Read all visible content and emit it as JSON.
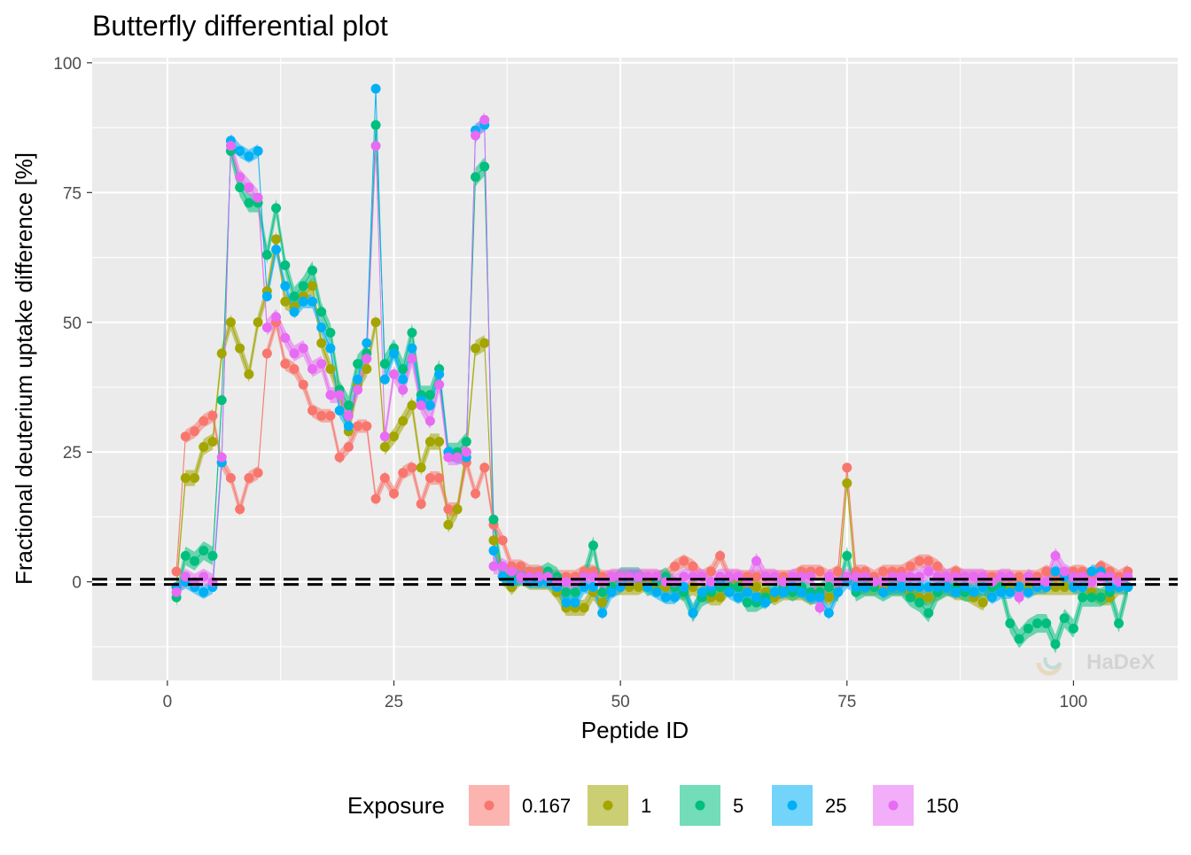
{
  "chart_data": {
    "type": "line",
    "title": "Butterfly differential plot",
    "xlabel": "Peptide ID",
    "ylabel": "Fractional deuterium uptake difference [%]",
    "xlim": [
      -8.3,
      111.5
    ],
    "ylim": [
      -19,
      101
    ],
    "x_ticks": [
      0,
      25,
      50,
      75,
      100
    ],
    "y_ticks": [
      0,
      25,
      50,
      75,
      100
    ],
    "grid": true,
    "reference_lines": [
      -0.5,
      0.5
    ],
    "legend": {
      "title": "Exposure",
      "position": "bottom"
    },
    "watermark": "HaDeX",
    "series": [
      {
        "name": "0.167",
        "color": "#F8766D",
        "x": [
          1,
          2,
          3,
          4,
          5,
          6,
          7,
          8,
          9,
          10,
          11,
          12,
          13,
          14,
          15,
          16,
          17,
          18,
          19,
          20,
          21,
          22,
          23,
          24,
          25,
          26,
          27,
          28,
          29,
          30,
          31,
          32,
          33,
          34,
          35,
          36,
          37,
          38,
          39,
          40,
          41,
          42,
          43,
          44,
          45,
          46,
          47,
          48,
          49,
          50,
          51,
          52,
          53,
          54,
          55,
          56,
          57,
          58,
          59,
          60,
          61,
          62,
          63,
          64,
          65,
          66,
          67,
          68,
          69,
          70,
          71,
          72,
          73,
          74,
          75,
          76,
          77,
          78,
          79,
          80,
          81,
          82,
          83,
          84,
          85,
          86,
          87,
          88,
          89,
          90,
          91,
          92,
          93,
          94,
          95,
          96,
          97,
          98,
          99,
          100,
          101,
          102,
          103,
          104,
          105,
          106
        ],
        "y": [
          2,
          28,
          29,
          31,
          32,
          23,
          20,
          14,
          20,
          21,
          44,
          50,
          42,
          41,
          38,
          33,
          32,
          32,
          24,
          26,
          30,
          30,
          16,
          20,
          17,
          21,
          22,
          15,
          20,
          20,
          14,
          14,
          23,
          17,
          22,
          11,
          8,
          3,
          3,
          2,
          2,
          1,
          1,
          1,
          1,
          2,
          2,
          1,
          1,
          1,
          1,
          1,
          1,
          1,
          1,
          3,
          4,
          3,
          1,
          2,
          5,
          1,
          1,
          1,
          1,
          1,
          1,
          1,
          1,
          2,
          2,
          2,
          1,
          2,
          22,
          2,
          2,
          1,
          2,
          2,
          2,
          3,
          4,
          4,
          3,
          1,
          2,
          1,
          1,
          1,
          1,
          1,
          1,
          1,
          1,
          1,
          2,
          1,
          1,
          2,
          2,
          1,
          3,
          2,
          1,
          2
        ]
      },
      {
        "name": "1",
        "color": "#A3A500",
        "x": [
          1,
          2,
          3,
          4,
          5,
          6,
          7,
          8,
          9,
          10,
          11,
          12,
          13,
          14,
          15,
          16,
          17,
          18,
          19,
          20,
          21,
          22,
          23,
          24,
          25,
          26,
          27,
          28,
          29,
          30,
          31,
          32,
          33,
          34,
          35,
          36,
          37,
          38,
          39,
          40,
          41,
          42,
          43,
          44,
          45,
          46,
          47,
          48,
          49,
          50,
          51,
          52,
          53,
          54,
          55,
          56,
          57,
          58,
          59,
          60,
          61,
          62,
          63,
          64,
          65,
          66,
          67,
          68,
          69,
          70,
          71,
          72,
          73,
          74,
          75,
          76,
          77,
          78,
          79,
          80,
          81,
          82,
          83,
          84,
          85,
          86,
          87,
          88,
          89,
          90,
          91,
          92,
          93,
          94,
          95,
          96,
          97,
          98,
          99,
          100,
          101,
          102,
          103,
          104,
          105,
          106
        ],
        "y": [
          -1,
          20,
          20,
          26,
          27,
          44,
          50,
          45,
          40,
          50,
          56,
          66,
          54,
          53,
          55,
          57,
          46,
          41,
          36,
          29,
          38,
          41,
          50,
          26,
          28,
          31,
          34,
          22,
          27,
          27,
          11,
          14,
          25,
          45,
          46,
          8,
          1,
          -1,
          1,
          0,
          0,
          0,
          -2,
          -5,
          -5,
          -5,
          -2,
          -4,
          -1,
          -1,
          -1,
          -1,
          0,
          -1,
          -1,
          -1,
          -2,
          -1,
          -2,
          -3,
          -3,
          -1,
          0,
          -1,
          -1,
          -2,
          -3,
          -2,
          -2,
          -2,
          -3,
          -2,
          -3,
          -2,
          19,
          -1,
          -1,
          -1,
          -1,
          -1,
          -1,
          -2,
          -3,
          -3,
          -2,
          -1,
          -2,
          -2,
          -3,
          -4,
          -1,
          -1,
          -1,
          -1,
          -1,
          -1,
          -1,
          -1,
          -1,
          -1,
          -1,
          -2,
          -3,
          -3,
          -1,
          -1
        ]
      },
      {
        "name": "5",
        "color": "#00BF7D",
        "x": [
          1,
          2,
          3,
          4,
          5,
          6,
          7,
          8,
          9,
          10,
          11,
          12,
          13,
          14,
          15,
          16,
          17,
          18,
          19,
          20,
          21,
          22,
          23,
          24,
          25,
          26,
          27,
          28,
          29,
          30,
          31,
          32,
          33,
          34,
          35,
          36,
          37,
          38,
          39,
          40,
          41,
          42,
          43,
          44,
          45,
          46,
          47,
          48,
          49,
          50,
          51,
          52,
          53,
          54,
          55,
          56,
          57,
          58,
          59,
          60,
          61,
          62,
          63,
          64,
          65,
          66,
          67,
          68,
          69,
          70,
          71,
          72,
          73,
          74,
          75,
          76,
          77,
          78,
          79,
          80,
          81,
          82,
          83,
          84,
          85,
          86,
          87,
          88,
          89,
          90,
          91,
          92,
          93,
          94,
          95,
          96,
          97,
          98,
          99,
          100,
          101,
          102,
          103,
          104,
          105,
          106
        ],
        "y": [
          -3,
          5,
          4,
          6,
          5,
          35,
          83,
          76,
          73,
          73,
          63,
          72,
          61,
          55,
          57,
          60,
          52,
          48,
          37,
          34,
          42,
          44,
          88,
          42,
          45,
          41,
          48,
          36,
          36,
          41,
          25,
          25,
          27,
          78,
          80,
          12,
          1,
          1,
          1,
          1,
          1,
          2,
          1,
          -2,
          -2,
          1,
          7,
          -2,
          -1,
          1,
          1,
          1,
          -1,
          0,
          1,
          -1,
          -2,
          -6,
          -3,
          -2,
          -1,
          -1,
          -1,
          -4,
          -4,
          -3,
          -2,
          -1,
          -2,
          -1,
          -2,
          -2,
          -1,
          -2,
          5,
          -2,
          -1,
          -1,
          -2,
          -1,
          -1,
          -3,
          -4,
          -6,
          -2,
          -1,
          -1,
          -2,
          -2,
          -1,
          -1,
          -1,
          -8,
          -11,
          -9,
          -8,
          -8,
          -12,
          -7,
          -9,
          -3,
          -3,
          -3,
          -2,
          -8,
          -1
        ]
      },
      {
        "name": "25",
        "color": "#00B0F6",
        "x": [
          1,
          2,
          3,
          4,
          5,
          6,
          7,
          8,
          9,
          10,
          11,
          12,
          13,
          14,
          15,
          16,
          17,
          18,
          19,
          20,
          21,
          22,
          23,
          24,
          25,
          26,
          27,
          28,
          29,
          30,
          31,
          32,
          33,
          34,
          35,
          36,
          37,
          38,
          39,
          40,
          41,
          42,
          43,
          44,
          45,
          46,
          47,
          48,
          49,
          50,
          51,
          52,
          53,
          54,
          55,
          56,
          57,
          58,
          59,
          60,
          61,
          62,
          63,
          64,
          65,
          66,
          67,
          68,
          69,
          70,
          71,
          72,
          73,
          74,
          75,
          76,
          77,
          78,
          79,
          80,
          81,
          82,
          83,
          84,
          85,
          86,
          87,
          88,
          89,
          90,
          91,
          92,
          93,
          94,
          95,
          96,
          97,
          98,
          99,
          100,
          101,
          102,
          103,
          104,
          105,
          106
        ],
        "y": [
          -1,
          0,
          -1,
          -2,
          -1,
          23,
          85,
          83,
          82,
          83,
          55,
          64,
          57,
          52,
          54,
          54,
          49,
          45,
          33,
          30,
          39,
          46,
          95,
          39,
          44,
          39,
          45,
          35,
          34,
          40,
          25,
          24,
          24,
          87,
          88,
          6,
          1,
          0,
          1,
          0,
          0,
          0,
          -1,
          -4,
          -4,
          -1,
          -1,
          -6,
          -2,
          -1,
          1,
          1,
          -1,
          -2,
          -3,
          -3,
          -1,
          -6,
          -2,
          -1,
          0,
          -2,
          -3,
          -2,
          -3,
          -4,
          -2,
          -2,
          -1,
          -2,
          -3,
          -3,
          -6,
          -2,
          0,
          -1,
          -1,
          0,
          -2,
          -1,
          -1,
          -1,
          -1,
          -1,
          -1,
          -1,
          -2,
          -1,
          -2,
          -1,
          -3,
          -2,
          -2,
          -1,
          -2,
          -1,
          -1,
          2,
          1,
          -1,
          -1,
          2,
          2,
          -1,
          -1,
          -1
        ]
      },
      {
        "name": "150",
        "color": "#E76BF3",
        "x": [
          1,
          2,
          3,
          4,
          5,
          6,
          7,
          8,
          9,
          10,
          11,
          12,
          13,
          14,
          15,
          16,
          17,
          18,
          19,
          20,
          21,
          22,
          23,
          24,
          25,
          26,
          27,
          28,
          29,
          30,
          31,
          32,
          33,
          34,
          35,
          36,
          37,
          38,
          39,
          40,
          41,
          42,
          43,
          44,
          45,
          46,
          47,
          48,
          49,
          50,
          51,
          52,
          53,
          54,
          55,
          56,
          57,
          58,
          59,
          60,
          61,
          62,
          63,
          64,
          65,
          66,
          67,
          68,
          69,
          70,
          71,
          72,
          73,
          74,
          75,
          76,
          77,
          78,
          79,
          80,
          81,
          82,
          83,
          84,
          85,
          86,
          87,
          88,
          89,
          90,
          91,
          92,
          93,
          94,
          95,
          96,
          97,
          98,
          99,
          100,
          101,
          102,
          103,
          104,
          105,
          106
        ],
        "y": [
          -2,
          1,
          0,
          1,
          0,
          24,
          84,
          78,
          76,
          74,
          49,
          51,
          47,
          44,
          45,
          41,
          42,
          36,
          36,
          32,
          37,
          43,
          84,
          28,
          40,
          37,
          43,
          34,
          31,
          38,
          24,
          24,
          25,
          86,
          89,
          3,
          3,
          2,
          1,
          1,
          1,
          1,
          0,
          0,
          0,
          1,
          1,
          0,
          1,
          1,
          1,
          1,
          1,
          1,
          0,
          0,
          1,
          1,
          1,
          0,
          1,
          1,
          1,
          0,
          4,
          1,
          1,
          0,
          1,
          1,
          1,
          -5,
          1,
          0,
          1,
          1,
          1,
          0,
          0,
          1,
          1,
          1,
          1,
          2,
          1,
          1,
          1,
          1,
          1,
          1,
          0,
          1,
          1,
          -3,
          1,
          0,
          0,
          5,
          2,
          1,
          1,
          0,
          1,
          1,
          0,
          1
        ]
      }
    ]
  }
}
